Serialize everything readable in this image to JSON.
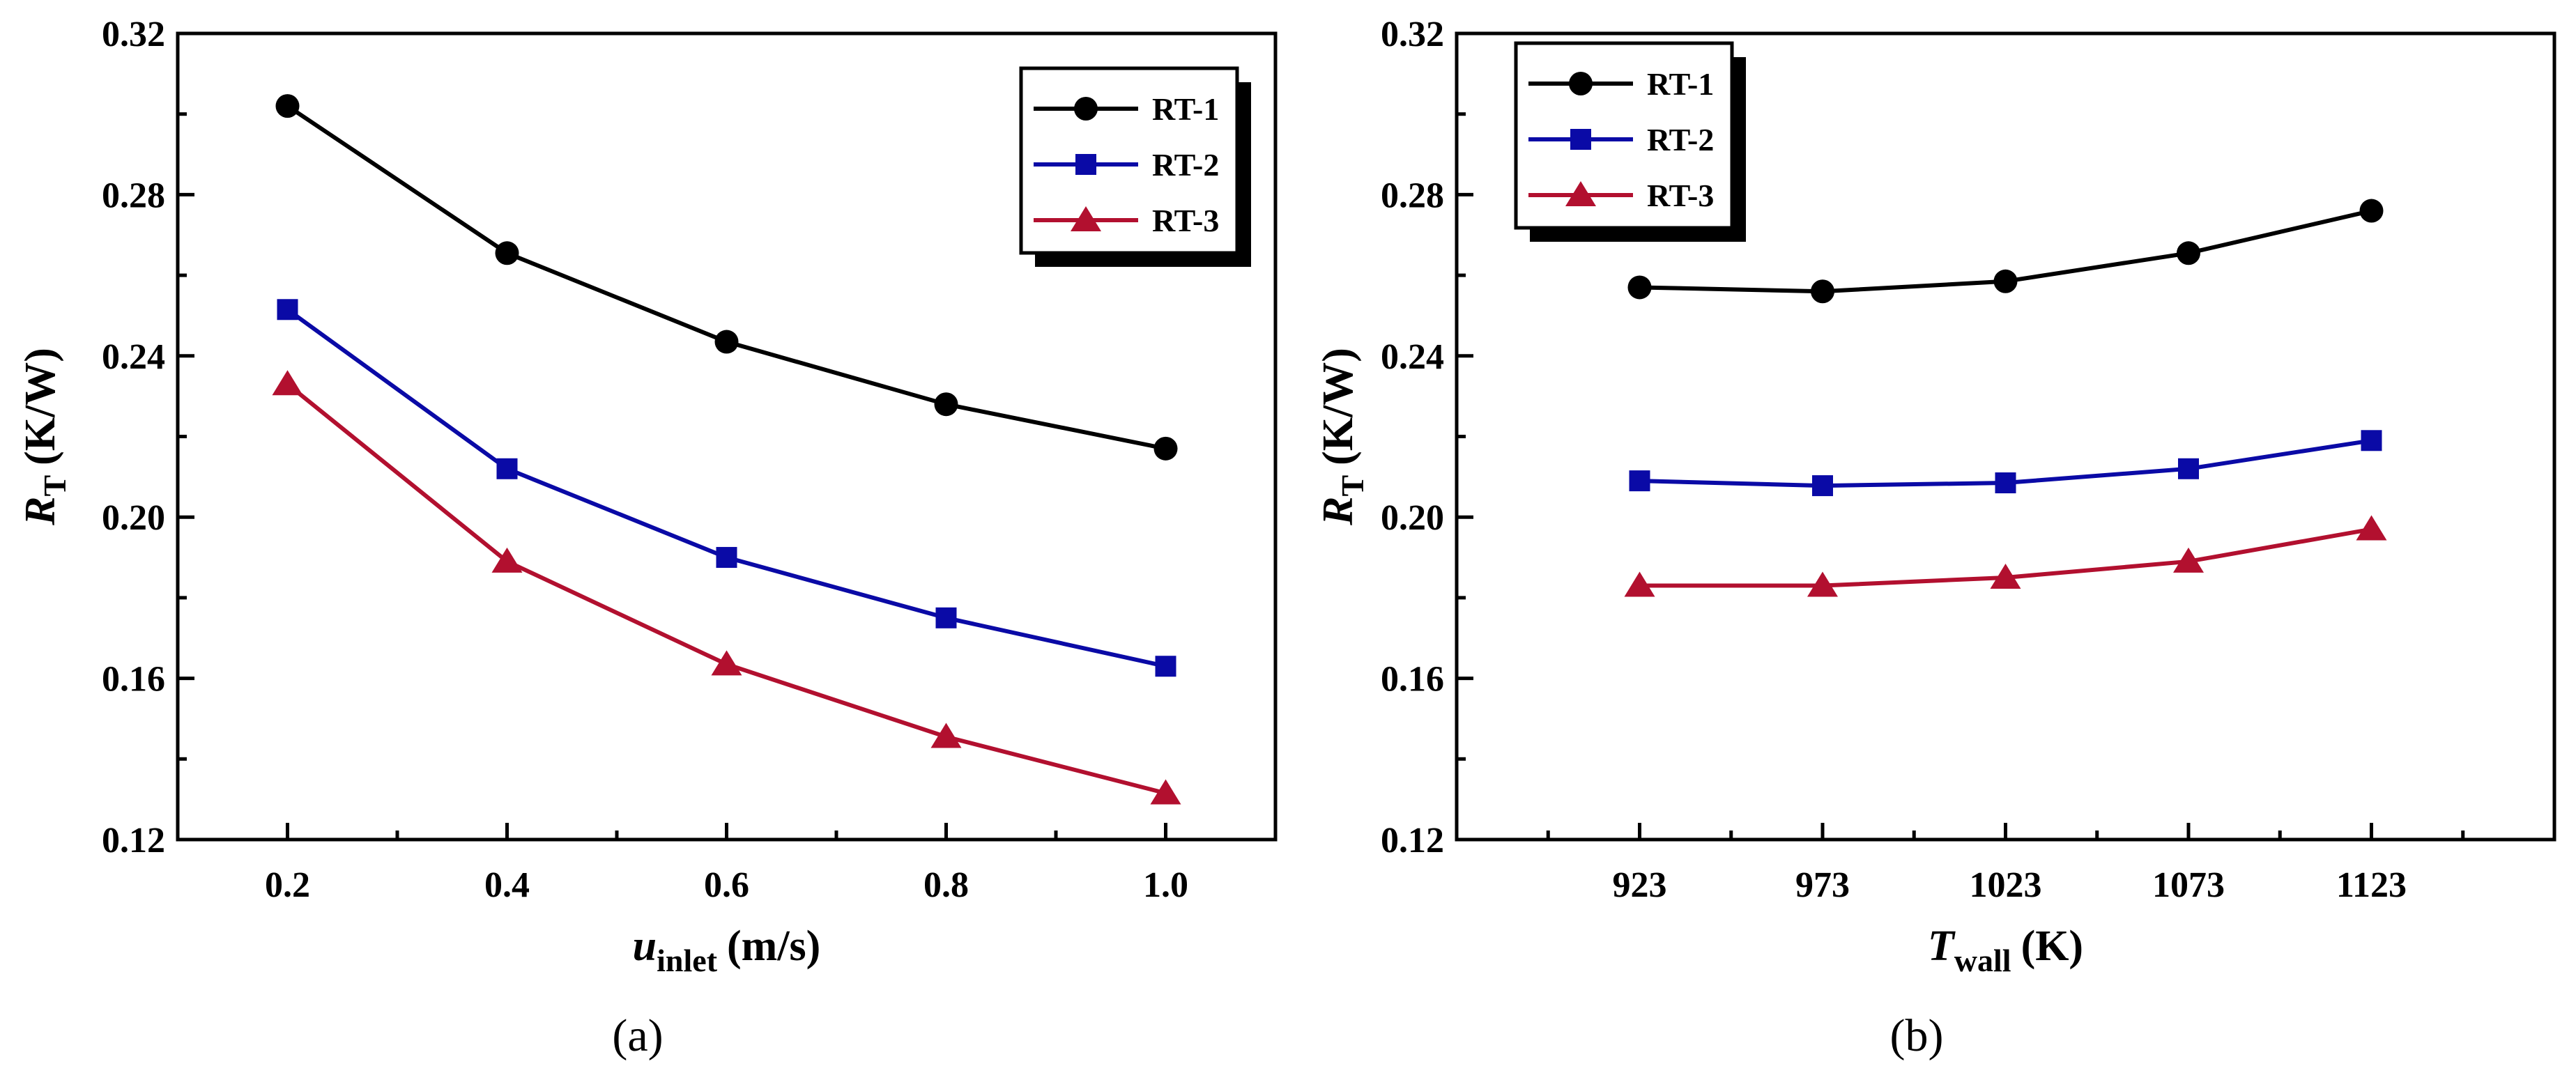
{
  "chart_data": [
    {
      "id": "a",
      "type": "line",
      "panel_label": "(a)",
      "xlabel": {
        "main": "u",
        "sub": "inlet",
        "unit": "(m/s)"
      },
      "ylabel": {
        "main": "R",
        "sub": "T",
        "unit": "(K/W)"
      },
      "x": [
        0.2,
        0.4,
        0.6,
        0.8,
        1.0
      ],
      "x_tick_labels": [
        "0.2",
        "0.4",
        "0.6",
        "0.8",
        "1.0"
      ],
      "xlim": [
        0.1,
        1.1
      ],
      "ylim": [
        0.12,
        0.32
      ],
      "y_ticks": [
        0.12,
        0.16,
        0.2,
        0.24,
        0.28,
        0.32
      ],
      "y_tick_labels": [
        "0.12",
        "0.16",
        "0.20",
        "0.24",
        "0.28",
        "0.32"
      ],
      "legend_position": "top-right",
      "grid": false,
      "series": [
        {
          "name": "RT-1",
          "color": "#000000",
          "marker": "circle",
          "values": [
            0.302,
            0.2655,
            0.2435,
            0.228,
            0.217
          ]
        },
        {
          "name": "RT-2",
          "color": "#0a0aa6",
          "marker": "square",
          "values": [
            0.2515,
            0.212,
            0.19,
            0.175,
            0.163
          ]
        },
        {
          "name": "RT-3",
          "color": "#b2102f",
          "marker": "triangle",
          "values": [
            0.233,
            0.189,
            0.1635,
            0.1455,
            0.1315
          ]
        }
      ]
    },
    {
      "id": "b",
      "type": "line",
      "panel_label": "(b)",
      "xlabel": {
        "main": "T",
        "sub": "wall",
        "unit": "(K)"
      },
      "ylabel": {
        "main": "R",
        "sub": "T",
        "unit": "(K/W)"
      },
      "x": [
        923,
        973,
        1023,
        1073,
        1123
      ],
      "x_tick_labels": [
        "923",
        "973",
        "1023",
        "1073",
        "1123"
      ],
      "xlim": [
        873,
        1173
      ],
      "ylim": [
        0.12,
        0.32
      ],
      "y_ticks": [
        0.12,
        0.16,
        0.2,
        0.24,
        0.28,
        0.32
      ],
      "y_tick_labels": [
        "0.12",
        "0.16",
        "0.20",
        "0.24",
        "0.28",
        "0.32"
      ],
      "legend_position": "top-left",
      "grid": false,
      "series": [
        {
          "name": "RT-1",
          "color": "#000000",
          "marker": "circle",
          "values": [
            0.257,
            0.256,
            0.2585,
            0.2655,
            0.276
          ]
        },
        {
          "name": "RT-2",
          "color": "#0a0aa6",
          "marker": "square",
          "values": [
            0.209,
            0.2078,
            0.2085,
            0.212,
            0.219
          ]
        },
        {
          "name": "RT-3",
          "color": "#b2102f",
          "marker": "triangle",
          "values": [
            0.183,
            0.183,
            0.185,
            0.189,
            0.197
          ]
        }
      ]
    }
  ]
}
